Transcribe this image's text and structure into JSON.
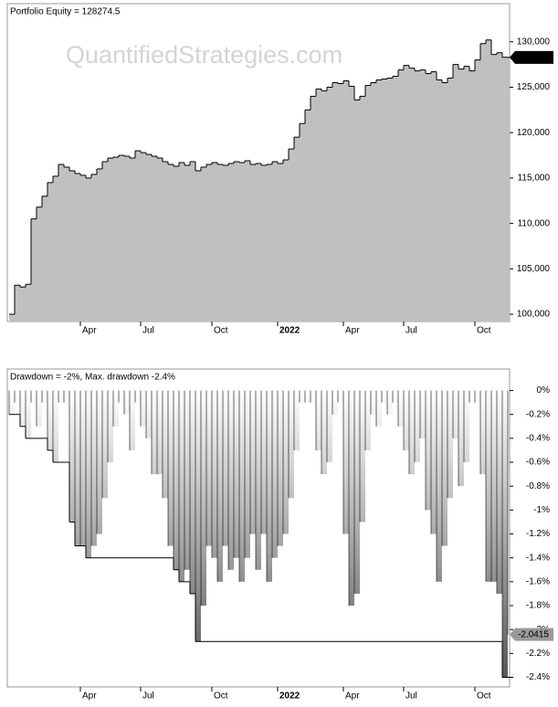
{
  "watermark": "QuantifiedStrategies.com",
  "chart_data": [
    {
      "type": "step-area",
      "title": "Portfolio Equity = 128274.5",
      "color": "#c0c0c0",
      "categories": [
        null,
        null,
        null,
        null,
        null,
        null,
        null,
        null,
        null,
        null,
        null,
        null,
        null,
        "Apr",
        null,
        null,
        null,
        null,
        null,
        null,
        null,
        null,
        null,
        null,
        "Jul",
        null,
        null,
        null,
        null,
        null,
        null,
        null,
        null,
        null,
        null,
        null,
        null,
        "Oct",
        null,
        null,
        null,
        null,
        null,
        null,
        null,
        null,
        null,
        null,
        null,
        "2022",
        null,
        null,
        null,
        null,
        null,
        null,
        null,
        null,
        null,
        null,
        null,
        "Apr",
        null,
        null,
        null,
        null,
        null,
        null,
        null,
        null,
        null,
        null,
        "Jul",
        null,
        null,
        null,
        null,
        null,
        null,
        null,
        null,
        null,
        null,
        null,
        null,
        "Oct",
        null,
        null,
        null,
        null,
        null,
        null
      ],
      "values": [
        100000,
        103200,
        103000,
        103300,
        110500,
        111800,
        113000,
        114500,
        115200,
        116500,
        116200,
        115800,
        115500,
        115300,
        115000,
        115400,
        116000,
        116800,
        117200,
        117300,
        117500,
        117400,
        117200,
        118000,
        117800,
        117600,
        117400,
        117200,
        116800,
        116500,
        116300,
        116700,
        116400,
        116800,
        115800,
        116200,
        116500,
        116700,
        116500,
        116400,
        116600,
        116800,
        116700,
        116900,
        116500,
        116600,
        116400,
        116500,
        116800,
        116600,
        117000,
        118200,
        119500,
        121000,
        122500,
        124000,
        124800,
        124600,
        125000,
        125500,
        125400,
        125700,
        125100,
        123600,
        124000,
        125200,
        125500,
        125800,
        125900,
        126000,
        126200,
        126900,
        127400,
        127100,
        126800,
        126900,
        126500,
        126700,
        125800,
        125500,
        126000,
        127500,
        127000,
        127300,
        126800,
        128000,
        129800,
        130200,
        128600,
        128800,
        128300,
        128274.5
      ],
      "last_value": {
        "value": 128274.5,
        "label": "128,275"
      },
      "ylim": [
        99200,
        134200
      ],
      "yticks": [
        {
          "value": 100000,
          "label": "100,000"
        },
        {
          "value": 105000,
          "label": "105,000"
        },
        {
          "value": 110000,
          "label": "110,000"
        },
        {
          "value": 115000,
          "label": "115,000"
        },
        {
          "value": 120000,
          "label": "120,000"
        },
        {
          "value": 125000,
          "label": "125,000"
        },
        {
          "value": 130000,
          "label": "130,000"
        }
      ]
    },
    {
      "type": "drawdown",
      "title": "Drawdown = -2%, Max. drawdown -2.4%",
      "categories": [
        null,
        null,
        null,
        null,
        null,
        null,
        null,
        null,
        null,
        null,
        null,
        null,
        null,
        "Apr",
        null,
        null,
        null,
        null,
        null,
        null,
        null,
        null,
        null,
        null,
        "Jul",
        null,
        null,
        null,
        null,
        null,
        null,
        null,
        null,
        null,
        null,
        null,
        null,
        "Oct",
        null,
        null,
        null,
        null,
        null,
        null,
        null,
        null,
        null,
        null,
        null,
        "2022",
        null,
        null,
        null,
        null,
        null,
        null,
        null,
        null,
        null,
        null,
        null,
        "Apr",
        null,
        null,
        null,
        null,
        null,
        null,
        null,
        null,
        null,
        null,
        "Jul",
        null,
        null,
        null,
        null,
        null,
        null,
        null,
        null,
        null,
        null,
        null,
        null,
        "Oct",
        null,
        null,
        null,
        null,
        null,
        null
      ],
      "values": [
        -0.2,
        -0.1,
        -0.3,
        -0.4,
        -0.1,
        -0.3,
        -0.1,
        -0.5,
        -0.6,
        -0.1,
        -0.1,
        -1.1,
        -1.3,
        -1.3,
        -1.4,
        -1.3,
        -1.2,
        -0.9,
        -0.6,
        -0.3,
        -0.1,
        -0.2,
        -0.5,
        -0.1,
        -0.3,
        -0.4,
        -0.7,
        -0.7,
        -0.9,
        -1.3,
        -1.5,
        -1.6,
        -1.5,
        -1.7,
        -2.1,
        -1.8,
        -1.3,
        -1.4,
        -1.6,
        -1.3,
        -1.5,
        -1.4,
        -1.6,
        -1.4,
        -1.2,
        -1.5,
        -1.2,
        -1.6,
        -1.4,
        -1.3,
        -1.2,
        -0.9,
        -0.5,
        -0.1,
        -0.1,
        -0.1,
        -0.5,
        -0.7,
        -0.6,
        -0.2,
        -0.1,
        -1.2,
        -1.8,
        -1.7,
        -1.1,
        -0.5,
        -0.2,
        -0.3,
        -0.1,
        -0.2,
        -0.1,
        -0.3,
        -0.5,
        -0.7,
        -0.6,
        -0.4,
        -1.0,
        -1.2,
        -1.6,
        -1.3,
        -0.9,
        -0.4,
        -0.8,
        -0.6,
        -0.1,
        -0.1,
        -0.7,
        -1.6,
        -1.6,
        -1.7,
        -2.4,
        -2.0415
      ],
      "max_drawdown": [
        -0.2,
        -0.2,
        -0.3,
        -0.4,
        -0.4,
        -0.4,
        -0.4,
        -0.5,
        -0.6,
        -0.6,
        -0.6,
        -1.1,
        -1.3,
        -1.3,
        -1.4,
        -1.4,
        -1.4,
        -1.4,
        -1.4,
        -1.4,
        -1.4,
        -1.4,
        -1.4,
        -1.4,
        -1.4,
        -1.4,
        -1.4,
        -1.4,
        -1.4,
        -1.4,
        -1.5,
        -1.6,
        -1.6,
        -1.7,
        -2.1,
        -2.1,
        -2.1,
        -2.1,
        -2.1,
        -2.1,
        -2.1,
        -2.1,
        -2.1,
        -2.1,
        -2.1,
        -2.1,
        -2.1,
        -2.1,
        -2.1,
        -2.1,
        -2.1,
        -2.1,
        -2.1,
        -2.1,
        -2.1,
        -2.1,
        -2.1,
        -2.1,
        -2.1,
        -2.1,
        -2.1,
        -2.1,
        -2.1,
        -2.1,
        -2.1,
        -2.1,
        -2.1,
        -2.1,
        -2.1,
        -2.1,
        -2.1,
        -2.1,
        -2.1,
        -2.1,
        -2.1,
        -2.1,
        -2.1,
        -2.1,
        -2.1,
        -2.1,
        -2.1,
        -2.1,
        -2.1,
        -2.1,
        -2.1,
        -2.1,
        -2.1,
        -2.1,
        -2.1,
        -2.1,
        -2.4,
        -2.4
      ],
      "last_value": {
        "value": -2.0415,
        "label": "-2.0415"
      },
      "ylim": [
        -2.48,
        0.18
      ],
      "yticks": [
        {
          "value": 0,
          "label": "0%"
        },
        {
          "value": -0.2,
          "label": "-0.2%"
        },
        {
          "value": -0.4,
          "label": "-0.4%"
        },
        {
          "value": -0.6,
          "label": "-0.6%"
        },
        {
          "value": -0.8,
          "label": "-0.8%"
        },
        {
          "value": -1,
          "label": "-1%"
        },
        {
          "value": -1.2,
          "label": "-1.2%"
        },
        {
          "value": -1.4,
          "label": "-1.4%"
        },
        {
          "value": -1.6,
          "label": "-1.6%"
        },
        {
          "value": -1.8,
          "label": "-1.8%"
        },
        {
          "value": -2,
          "label": "-2%"
        },
        {
          "value": -2.2,
          "label": "-2.2%"
        },
        {
          "value": -2.4,
          "label": "-2.4%"
        }
      ]
    }
  ]
}
